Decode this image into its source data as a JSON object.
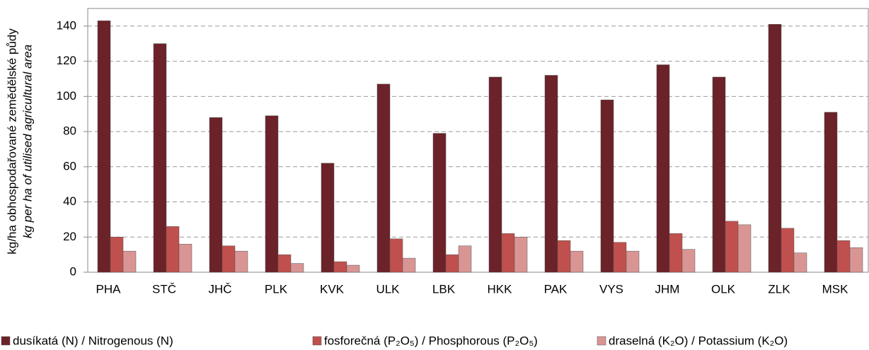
{
  "chart_data": {
    "type": "bar",
    "ylabel": [
      "kg/ha obhospodařované zemědělské půdy",
      "kg per ha of utilised agricultural area"
    ],
    "categories": [
      "PHA",
      "STČ",
      "JHČ",
      "PLK",
      "KVK",
      "ULK",
      "LBK",
      "HKK",
      "PAK",
      "VYS",
      "JHM",
      "OLK",
      "ZLK",
      "MSK"
    ],
    "series": [
      {
        "name": "dusíkatá (N) / Nitrogenous (N)",
        "color": "#6b2228",
        "values": [
          143,
          130,
          88,
          89,
          62,
          107,
          79,
          111,
          112,
          98,
          118,
          111,
          141,
          91
        ]
      },
      {
        "name": "fosforečná (P₂O₅) / Phosphorous (P₂O₅)",
        "color": "#c0504d",
        "values": [
          20,
          26,
          15,
          10,
          6,
          19,
          10,
          22,
          18,
          17,
          22,
          29,
          25,
          18
        ]
      },
      {
        "name": "draselná (K₂O) / Potassium (K₂O)",
        "color": "#d99594",
        "values": [
          12,
          16,
          12,
          5,
          4,
          8,
          15,
          20,
          12,
          12,
          13,
          27,
          11,
          14
        ]
      }
    ],
    "ylim": [
      0,
      150
    ],
    "yticks": [
      0,
      20,
      40,
      60,
      80,
      100,
      120,
      140
    ],
    "grid": true
  }
}
